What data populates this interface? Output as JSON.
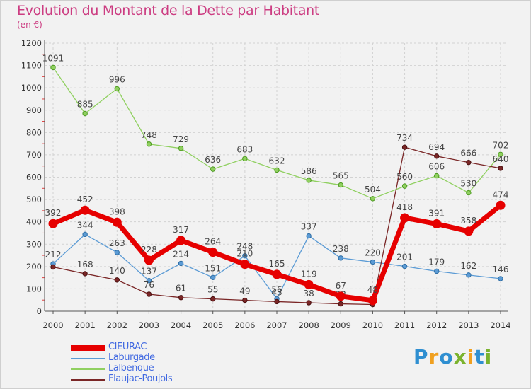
{
  "title": "Evolution du Montant de la Dette par Habitant",
  "unit": "(en €)",
  "logo": {
    "text": "Proxiti",
    "letters": [
      {
        "ch": "P",
        "color": "#2f8fd1"
      },
      {
        "ch": "r",
        "color": "#f0a020"
      },
      {
        "ch": "o",
        "color": "#2f8fd1"
      },
      {
        "ch": "x",
        "color": "#7bb32e"
      },
      {
        "ch": "i",
        "color": "#f0a020"
      },
      {
        "ch": "t",
        "color": "#2f8fd1"
      },
      {
        "ch": "i",
        "color": "#7bb32e"
      }
    ]
  },
  "chart_data": {
    "type": "line",
    "title": "Evolution du Montant de la Dette par Habitant",
    "ylabel": "(en €)",
    "xlabel": "",
    "x": [
      2000,
      2001,
      2002,
      2003,
      2004,
      2005,
      2006,
      2007,
      2008,
      2009,
      2010,
      2011,
      2012,
      2013,
      2014
    ],
    "ylim": [
      0,
      1200
    ],
    "yticks": [
      0,
      100,
      200,
      300,
      400,
      500,
      600,
      700,
      800,
      900,
      1000,
      1100,
      1200
    ],
    "grid": true,
    "legend_position": "bottom-left",
    "series": [
      {
        "name": "Laburgade",
        "color": "#5b9bd5",
        "markerStroke": "#2e6da4",
        "values": [
          212,
          344,
          263,
          137,
          214,
          151,
          248,
          56,
          337,
          238,
          220,
          201,
          179,
          162,
          146
        ],
        "labels": [
          "212",
          "344",
          "263",
          "137",
          "214",
          "151",
          "248",
          "56",
          "337",
          "238",
          "220",
          "201",
          "179",
          "162",
          "146"
        ]
      },
      {
        "name": "Lalbenque",
        "color": "#90d060",
        "markerStroke": "#4c9a1f",
        "values": [
          1091,
          885,
          996,
          748,
          729,
          636,
          683,
          632,
          586,
          565,
          504,
          560,
          606,
          530,
          702
        ],
        "labels": [
          "1091",
          "885",
          "996",
          "748",
          "729",
          "636",
          "683",
          "632",
          "586",
          "565",
          "504",
          "560",
          "606",
          "530",
          "702"
        ]
      },
      {
        "name": "Flaujac-Poujols",
        "color": "#7a2626",
        "markerStroke": "#4a1010",
        "values": [
          198,
          168,
          140,
          76,
          61,
          55,
          49,
          43,
          38,
          33,
          30,
          734,
          694,
          666,
          640
        ],
        "labels": [
          "",
          "168",
          "140",
          "76",
          "61",
          "55",
          "49",
          "43",
          "38",
          "33",
          "",
          "734",
          "694",
          "666",
          "640"
        ]
      },
      {
        "name": "CIEURAC",
        "color": "#e60000",
        "markerStroke": "#e60000",
        "values": [
          392,
          452,
          398,
          228,
          317,
          264,
          210,
          165,
          119,
          67,
          48,
          418,
          391,
          358,
          474
        ],
        "labels": [
          "392",
          "452",
          "398",
          "228",
          "317",
          "264",
          "210",
          "165",
          "119",
          "67",
          "48",
          "418",
          "391",
          "358",
          "474"
        ]
      }
    ],
    "legend": [
      {
        "name": "CIEURAC",
        "color": "#e60000",
        "thick": true
      },
      {
        "name": "Laburgade",
        "color": "#5b9bd5",
        "thick": false
      },
      {
        "name": "Lalbenque",
        "color": "#90d060",
        "thick": false
      },
      {
        "name": "Flaujac-Poujols",
        "color": "#7a2626",
        "thick": false
      }
    ]
  }
}
